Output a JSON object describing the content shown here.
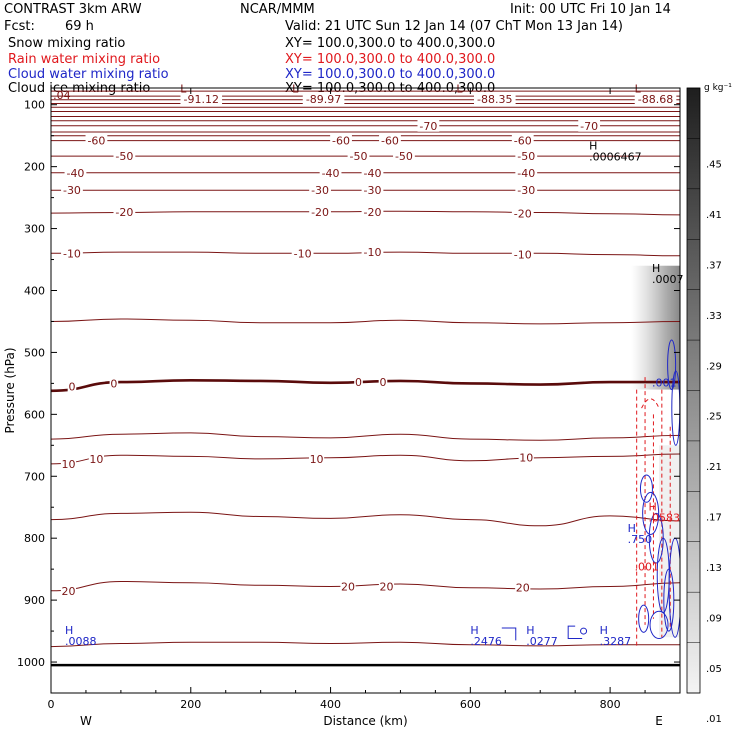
{
  "header": {
    "model": "CONTRAST  3km ARW",
    "institution": "NCAR/MMM",
    "init": "Init: 00 UTC Fri 10 Jan 14",
    "fcst_label": "Fcst:",
    "fcst_value": "69 h",
    "valid": "Valid: 21 UTC Sun 12 Jan 14 (07 ChT Mon 13 Jan 14)",
    "fields": [
      {
        "name": "Snow mixing ratio",
        "xy": "XY= 100.0,300.0 to 400.0,300.0",
        "color": "#000000"
      },
      {
        "name": "Rain water mixing ratio",
        "xy": "XY= 100.0,300.0 to 400.0,300.0",
        "color": "#e0191e"
      },
      {
        "name": "Cloud water mixing ratio",
        "xy": "XY= 100.0,300.0 to 400.0,300.0",
        "color": "#1f27c7"
      },
      {
        "name": "Cloud ice mixing ratio",
        "xy": "XY= 100.0,300.0 to 400.0,300.0",
        "color": "#000000"
      }
    ]
  },
  "colors": {
    "temperature": "#7b1515",
    "freezing": "#5a0b0b",
    "rain": "#e0191e",
    "cloud": "#1f27c7",
    "ground": "#000000"
  },
  "chart_data": {
    "type": "cross-section",
    "xlabel": "Distance (km)",
    "ylabel": "Pressure (hPa)",
    "xlim": [
      0,
      900
    ],
    "ylim": [
      1050,
      73
    ],
    "x_ticks": [
      0,
      200,
      400,
      600,
      800
    ],
    "y_ticks": [
      100,
      200,
      300,
      400,
      500,
      600,
      700,
      800,
      900,
      1000
    ],
    "endpoints": {
      "left": "W",
      "right": "E"
    },
    "ground_pressure": 1005,
    "isotherms": [
      {
        "t": -70,
        "p": [
          134,
          134,
          134,
          134,
          134,
          134,
          134,
          134,
          134,
          134
        ]
      },
      {
        "t": -60,
        "p": [
          158,
          158,
          158,
          158,
          158,
          158,
          158,
          158,
          158,
          158
        ]
      },
      {
        "t": -50,
        "p": [
          183,
          183,
          183,
          183,
          183,
          183,
          183,
          183,
          183,
          183
        ]
      },
      {
        "t": -40,
        "p": [
          210,
          210,
          210,
          210,
          210,
          210,
          210,
          210,
          210,
          210
        ]
      },
      {
        "t": -30,
        "p": [
          238,
          238,
          238,
          238,
          238,
          238,
          238,
          238,
          238,
          238
        ]
      },
      {
        "t": -20,
        "p": [
          275,
          274,
          273,
          273,
          273,
          272,
          273,
          274,
          276,
          278
        ]
      },
      {
        "t": -10,
        "p": [
          340,
          338,
          338,
          340,
          340,
          338,
          340,
          340,
          342,
          344
        ]
      },
      {
        "t": 0,
        "p": [
          562,
          548,
          545,
          546,
          549,
          546,
          550,
          552,
          548,
          548
        ]
      },
      {
        "t": 10,
        "p": [
          680,
          666,
          668,
          672,
          670,
          666,
          675,
          670,
          668,
          664
        ]
      },
      {
        "t": 20,
        "p": [
          885,
          870,
          872,
          876,
          878,
          874,
          880,
          882,
          878,
          872
        ]
      }
    ],
    "upper_lines_p": [
      78,
      86,
      92,
      98,
      104,
      111,
      119,
      126,
      144,
      150
    ],
    "extra_lines": [
      {
        "p": [
          770,
          760,
          758,
          765,
          768,
          762,
          770,
          780,
          764,
          772
        ]
      },
      {
        "p": [
          640,
          632,
          630,
          636,
          638,
          632,
          640,
          642,
          638,
          634
        ]
      },
      {
        "p": [
          450,
          446,
          448,
          452,
          452,
          448,
          452,
          454,
          452,
          450
        ]
      },
      {
        "p": [
          975,
          970,
          968,
          968,
          970,
          968,
          972,
          974,
          972,
          972
        ]
      }
    ],
    "temperature_labels": [
      {
        "text": "-91.12",
        "x": 215,
        "p": 91
      },
      {
        "text": "-89.97",
        "x": 390,
        "p": 91
      },
      {
        "text": "-88.35",
        "x": 635,
        "p": 91
      },
      {
        "text": "-88.68",
        "x": 865,
        "p": 91
      },
      {
        "text": "-70",
        "x": 540,
        "p": 134
      },
      {
        "text": "-70",
        "x": 770,
        "p": 134
      },
      {
        "text": "-60",
        "x": 65,
        "p": 158
      },
      {
        "text": "-60",
        "x": 415,
        "p": 158
      },
      {
        "text": "-60",
        "x": 485,
        "p": 158
      },
      {
        "text": "-60",
        "x": 675,
        "p": 158
      },
      {
        "text": "-50",
        "x": 105,
        "p": 183
      },
      {
        "text": "-50",
        "x": 440,
        "p": 183
      },
      {
        "text": "-50",
        "x": 505,
        "p": 183
      },
      {
        "text": "-50",
        "x": 680,
        "p": 183
      },
      {
        "text": "-40",
        "x": 35,
        "p": 210
      },
      {
        "text": "-40",
        "x": 400,
        "p": 210
      },
      {
        "text": "-40",
        "x": 460,
        "p": 210
      },
      {
        "text": "-40",
        "x": 680,
        "p": 210
      },
      {
        "text": "-30",
        "x": 30,
        "p": 238
      },
      {
        "text": "-30",
        "x": 385,
        "p": 238
      },
      {
        "text": "-30",
        "x": 460,
        "p": 238
      },
      {
        "text": "-30",
        "x": 680,
        "p": 238
      },
      {
        "text": "-20",
        "x": 105,
        "p": 273
      },
      {
        "text": "-20",
        "x": 385,
        "p": 273
      },
      {
        "text": "-20",
        "x": 460,
        "p": 273
      },
      {
        "text": "-20",
        "x": 675,
        "p": 276
      },
      {
        "text": "-10",
        "x": 30,
        "p": 340
      },
      {
        "text": "-10",
        "x": 360,
        "p": 340
      },
      {
        "text": "-10",
        "x": 460,
        "p": 338
      },
      {
        "text": "-10",
        "x": 675,
        "p": 342
      },
      {
        "text": "0",
        "x": 30,
        "p": 555
      },
      {
        "text": "0",
        "x": 90,
        "p": 550
      },
      {
        "text": "0",
        "x": 440,
        "p": 548
      },
      {
        "text": "0",
        "x": 475,
        "p": 548
      },
      {
        "text": "10",
        "x": 25,
        "p": 680
      },
      {
        "text": "10",
        "x": 65,
        "p": 672
      },
      {
        "text": "10",
        "x": 380,
        "p": 672
      },
      {
        "text": "10",
        "x": 680,
        "p": 670
      },
      {
        "text": "20",
        "x": 25,
        "p": 885
      },
      {
        "text": "20",
        "x": 425,
        "p": 878
      },
      {
        "text": "20",
        "x": 480,
        "p": 878
      },
      {
        "text": "20",
        "x": 675,
        "p": 880
      }
    ],
    "extrema": [
      {
        "mark": "L",
        "value": "",
        "x": 185,
        "p": 80,
        "color": "temperature"
      },
      {
        "mark": "L",
        "value": "",
        "x": 345,
        "p": 80,
        "color": "temperature"
      },
      {
        "mark": "L",
        "value": "",
        "x": 580,
        "p": 80,
        "color": "temperature"
      },
      {
        "mark": "L",
        "value": "",
        "x": 835,
        "p": 80,
        "color": "temperature"
      },
      {
        "mark": "",
        "value": ".04",
        "x": 3,
        "p": 91,
        "color": "temperature"
      },
      {
        "mark": "H",
        "value": ".0006467",
        "x": 770,
        "p": 172,
        "color": "ground"
      },
      {
        "mark": "H",
        "value": ".0007",
        "x": 860,
        "p": 370,
        "color": "ground"
      },
      {
        "mark": "H",
        "value": ".0088",
        "x": 20,
        "p": 955,
        "color": "cloud"
      },
      {
        "mark": "H",
        "value": ".2476",
        "x": 600,
        "p": 955,
        "color": "cloud"
      },
      {
        "mark": "H",
        "value": ".0277",
        "x": 680,
        "p": 955,
        "color": "cloud"
      },
      {
        "mark": "H",
        "value": ".3287",
        "x": 785,
        "p": 955,
        "color": "cloud"
      },
      {
        "mark": "H",
        "value": ".750",
        "x": 825,
        "p": 790,
        "color": "cloud"
      },
      {
        "mark": "H",
        "value": ".0583",
        "x": 855,
        "p": 755,
        "color": "rain"
      },
      {
        "mark": "",
        "value": ".001",
        "x": 835,
        "p": 852,
        "color": "rain"
      },
      {
        "mark": "",
        "value": ".001",
        "x": 860,
        "p": 555,
        "color": "cloud"
      }
    ],
    "colorbar": {
      "unit": "g kg⁻¹",
      "ticks": [
        ".45",
        ".41",
        ".37",
        ".33",
        ".29",
        ".25",
        ".21",
        ".17",
        ".13",
        ".09",
        ".05",
        ".01"
      ]
    }
  }
}
